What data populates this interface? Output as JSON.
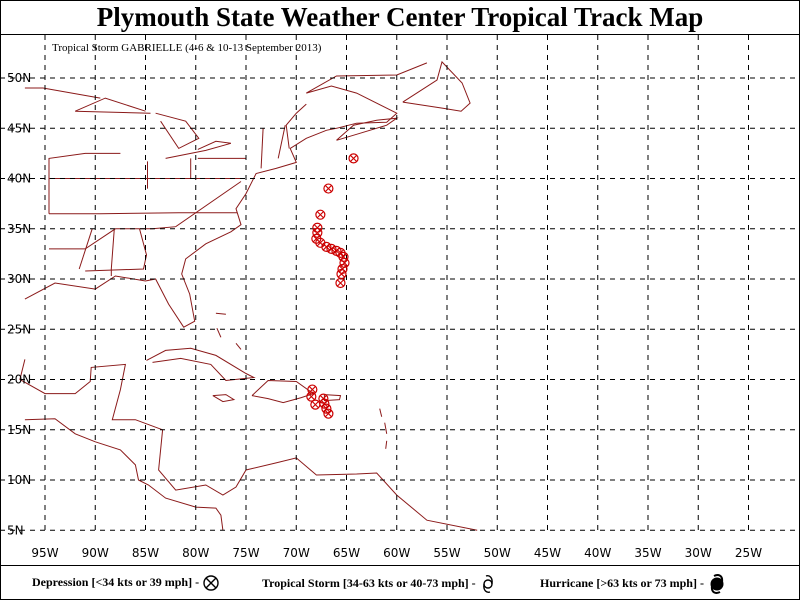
{
  "title": "Plymouth State Weather Center Tropical Track Map",
  "subtitle": "Tropical Storm GABRIELLE (4-6 & 10-13 September 2013)",
  "colors": {
    "track": "#cc0000",
    "land": "#8b1a1a",
    "grid": "#000000"
  },
  "chart_data": {
    "type": "scatter",
    "lon_labels": [
      "95W",
      "90W",
      "85W",
      "80W",
      "75W",
      "70W",
      "65W",
      "60W",
      "55W",
      "50W",
      "45W",
      "40W",
      "35W",
      "30W",
      "25W"
    ],
    "lat_labels": [
      "50N",
      "45N",
      "40N",
      "35N",
      "30N",
      "25N",
      "20N",
      "15N",
      "10N",
      "5N"
    ],
    "xlim": [
      -97,
      -23
    ],
    "ylim": [
      5,
      52
    ],
    "series": [
      {
        "symbol": "depression",
        "points": [
          {
            "lon": -68.4,
            "lat": 19.0
          },
          {
            "lon": -68.5,
            "lat": 18.3
          },
          {
            "lon": -68.1,
            "lat": 17.5
          },
          {
            "lon": -67.3,
            "lat": 18.1
          },
          {
            "lon": -67.2,
            "lat": 17.6
          },
          {
            "lon": -67.0,
            "lat": 17.1
          },
          {
            "lon": -66.8,
            "lat": 16.6
          },
          {
            "lon": -67.9,
            "lat": 35.1
          },
          {
            "lon": -67.9,
            "lat": 34.6
          },
          {
            "lon": -68.0,
            "lat": 34.0
          },
          {
            "lon": -67.6,
            "lat": 33.6
          },
          {
            "lon": -67.0,
            "lat": 33.2
          },
          {
            "lon": -66.5,
            "lat": 33.0
          },
          {
            "lon": -66.0,
            "lat": 32.8
          },
          {
            "lon": -65.6,
            "lat": 32.6
          },
          {
            "lon": -65.3,
            "lat": 32.2
          },
          {
            "lon": -65.2,
            "lat": 31.6
          },
          {
            "lon": -65.4,
            "lat": 31.0
          },
          {
            "lon": -65.5,
            "lat": 30.5
          },
          {
            "lon": -65.6,
            "lat": 29.6
          },
          {
            "lon": -67.6,
            "lat": 36.4
          },
          {
            "lon": -66.8,
            "lat": 39.0
          },
          {
            "lon": -64.3,
            "lat": 42.0
          }
        ]
      }
    ]
  },
  "legend": {
    "depression": "Depression [<34 kts or 39 mph] -",
    "storm": "Tropical Storm [34-63 kts or 40-73 mph] -",
    "hurricane": "Hurricane [>63 kts or 73 mph] -"
  }
}
